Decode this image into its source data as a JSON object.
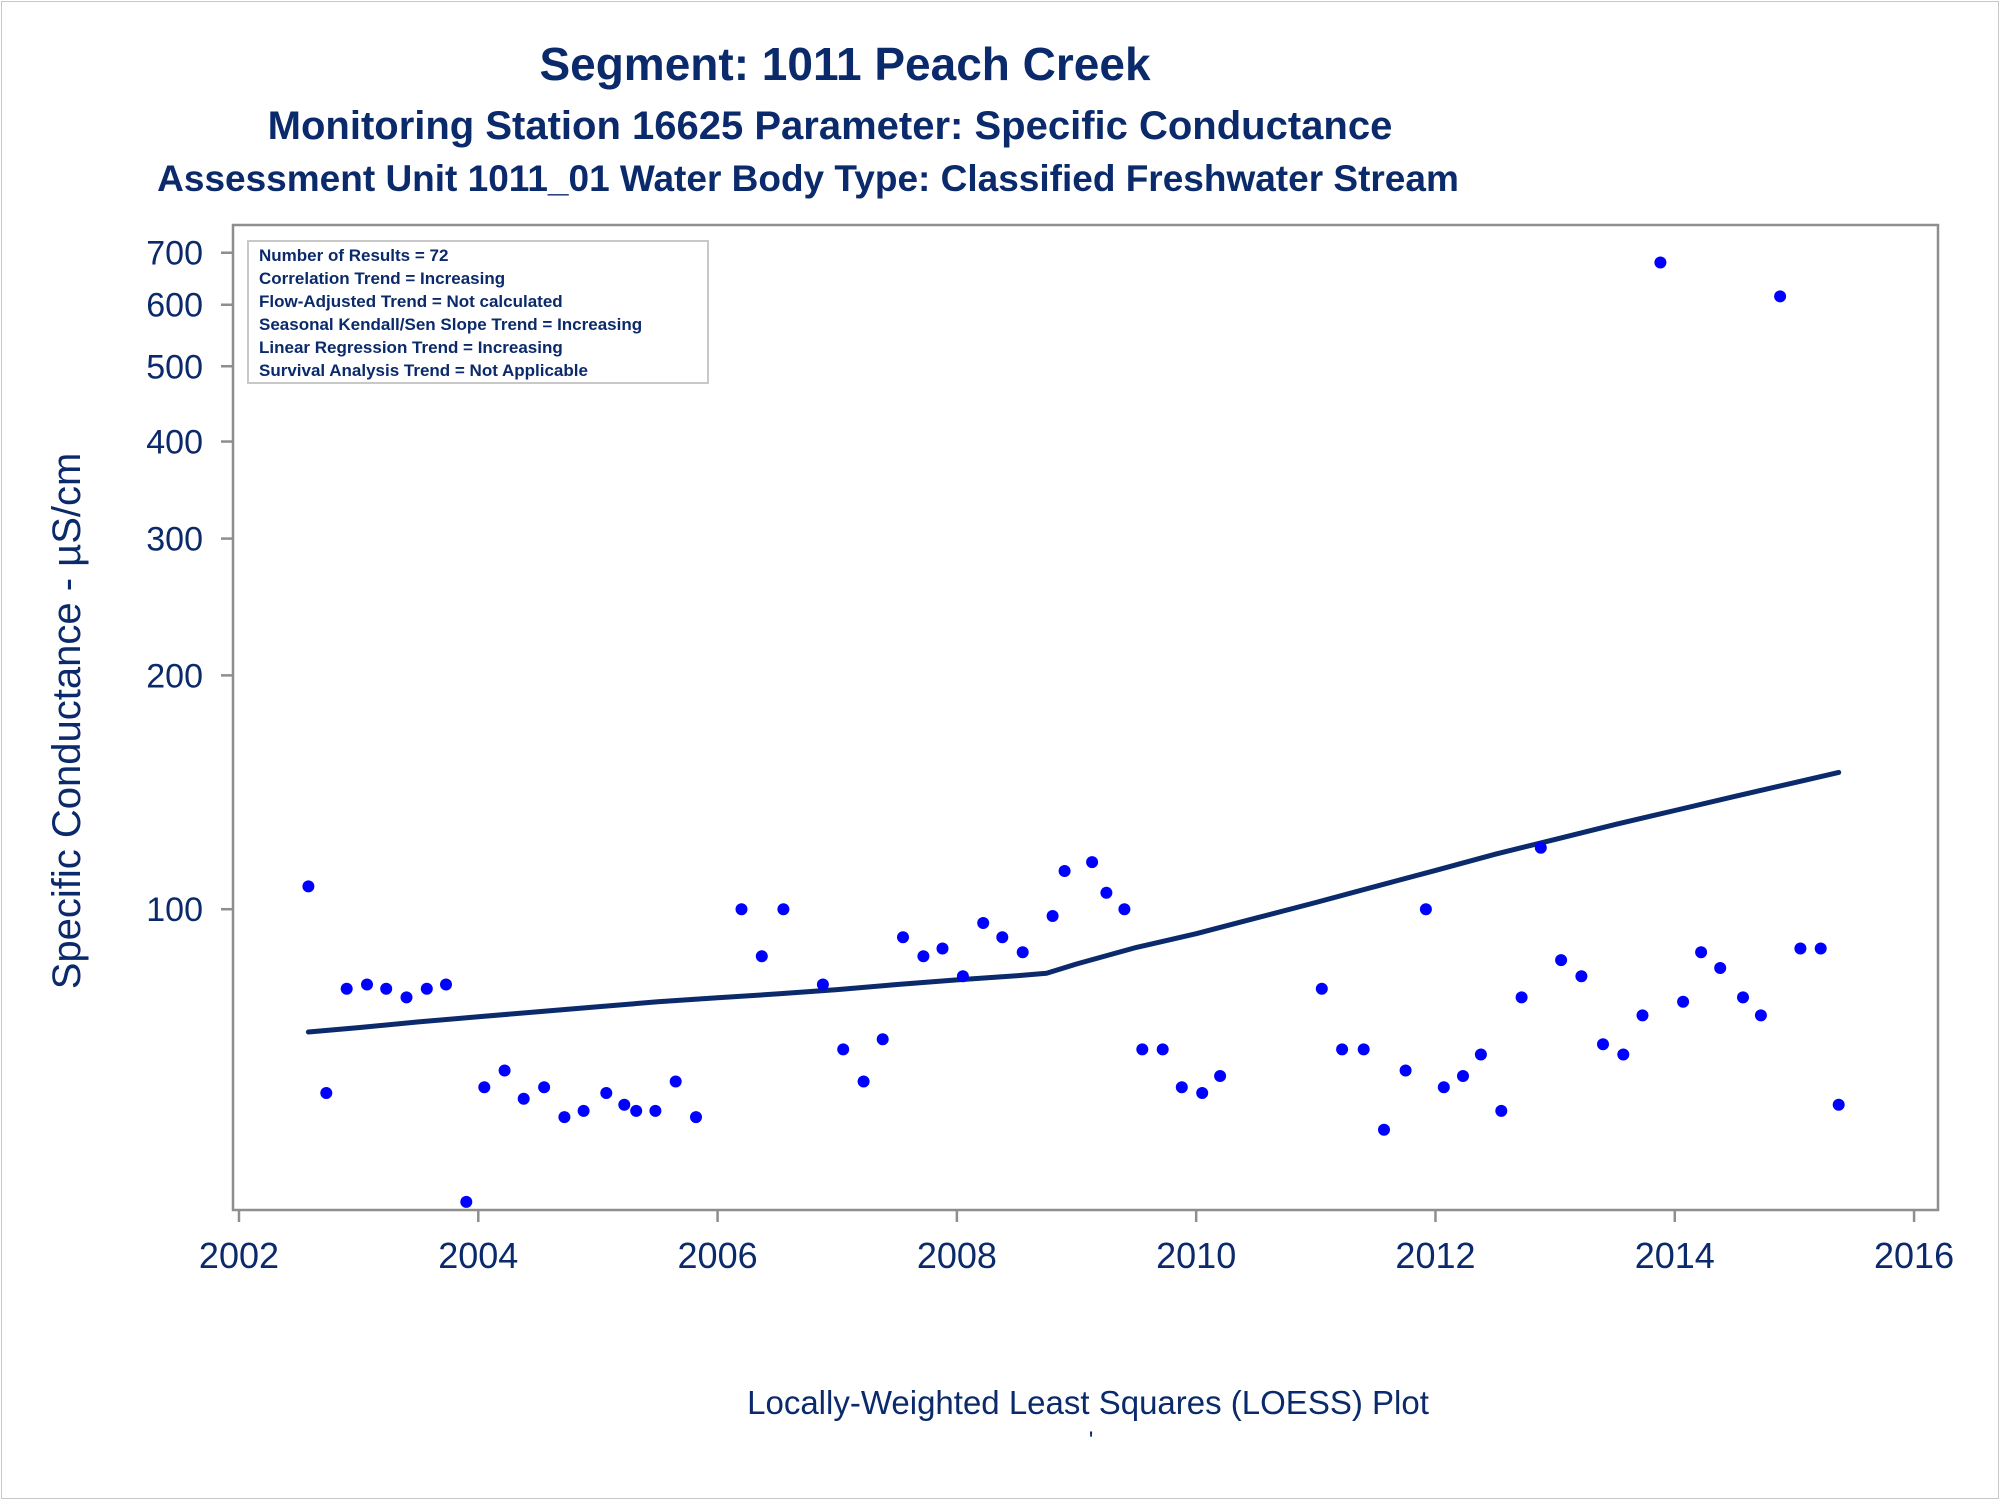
{
  "colors": {
    "text": "#0b2a6b",
    "points": "#0000ff",
    "trend_line": "#0b2a6b",
    "frame": "#8e8e8e",
    "legend_border": "#c8c8c8"
  },
  "chart_data": {
    "type": "scatter",
    "title": "Segment: 1011  Peach Creek",
    "subtitle1": "Monitoring Station 16625 Parameter: Specific Conductance",
    "subtitle2": "Assessment Unit 1011_01   Water Body Type: Classified Freshwater Stream",
    "xlabel": "Locally-Weighted Least Squares (LOESS) Plot",
    "ylabel": "Specific Conductance -  µS/cm",
    "footnote": "'",
    "y_scale": "log",
    "xlim": [
      2001.95,
      2016.2
    ],
    "ylim": [
      41,
      760
    ],
    "x_ticks": [
      "2002",
      "2004",
      "2006",
      "2008",
      "2010",
      "2012",
      "2014",
      "2016"
    ],
    "y_ticks": [
      "100",
      "200",
      "300",
      "400",
      "500",
      "600",
      "700"
    ],
    "grid": false,
    "legend": [
      "Number of Results = 72",
      "Correlation Trend = Increasing",
      "Flow-Adjusted Trend = Not calculated",
      "Seasonal Kendall/Sen Slope Trend = Increasing",
      "Linear Regression Trend = Increasing",
      "Survival Analysis Trend = Not Applicable"
    ],
    "legend_position": "top-left",
    "series": [
      {
        "name": "Specific Conductance",
        "mode": "markers",
        "x": [
          2002.58,
          2002.73,
          2002.9,
          2003.07,
          2003.23,
          2003.4,
          2003.57,
          2003.73,
          2003.9,
          2004.05,
          2004.22,
          2004.38,
          2004.55,
          2004.72,
          2004.88,
          2005.07,
          2005.22,
          2005.32,
          2005.48,
          2005.65,
          2005.82,
          2006.2,
          2006.37,
          2006.55,
          2006.88,
          2007.05,
          2007.22,
          2007.38,
          2007.55,
          2007.72,
          2007.88,
          2008.05,
          2008.22,
          2008.38,
          2008.55,
          2008.8,
          2008.9,
          2009.13,
          2009.25,
          2009.4,
          2009.55,
          2009.72,
          2009.88,
          2010.05,
          2010.2,
          2011.05,
          2011.22,
          2011.4,
          2011.57,
          2011.75,
          2011.92,
          2012.07,
          2012.23,
          2012.38,
          2012.55,
          2012.72,
          2012.88,
          2013.05,
          2013.22,
          2013.4,
          2013.57,
          2013.73,
          2013.88,
          2014.07,
          2014.22,
          2014.38,
          2014.57,
          2014.72,
          2014.88,
          2015.05,
          2015.22,
          2015.37
        ],
        "y": [
          107,
          58,
          79,
          80,
          79,
          77,
          79,
          80,
          42,
          59,
          62,
          57,
          59,
          54,
          55,
          58,
          56,
          55,
          55,
          60,
          54,
          100,
          87,
          100,
          80,
          66,
          60,
          68,
          92,
          87,
          89,
          82,
          96,
          92,
          88,
          98,
          112,
          115,
          105,
          100,
          66,
          66,
          59,
          58,
          61,
          79,
          66,
          66,
          52,
          62,
          100,
          59,
          61,
          65,
          55,
          77,
          120,
          86,
          82,
          67,
          65,
          73,
          680,
          76,
          88,
          84,
          77,
          73,
          615,
          89,
          89,
          56
        ]
      },
      {
        "name": "LOESS",
        "mode": "line",
        "x": [
          2002.58,
          2003.0,
          2003.5,
          2004.0,
          2004.5,
          2005.0,
          2005.5,
          2006.0,
          2006.5,
          2007.0,
          2007.5,
          2008.0,
          2008.5,
          2008.75,
          2009.0,
          2009.5,
          2010.0,
          2010.5,
          2011.0,
          2011.5,
          2012.0,
          2012.5,
          2013.0,
          2013.5,
          2014.0,
          2014.5,
          2015.0,
          2015.37
        ],
        "y": [
          69.5,
          70.4,
          71.6,
          72.7,
          73.8,
          74.9,
          76.0,
          76.9,
          77.8,
          78.8,
          80.0,
          81.1,
          82.1,
          82.7,
          85.0,
          89.3,
          93.0,
          97.4,
          102.0,
          107.0,
          112.2,
          117.7,
          123.0,
          128.5,
          134.0,
          139.7,
          145.5,
          150.0
        ]
      }
    ]
  }
}
